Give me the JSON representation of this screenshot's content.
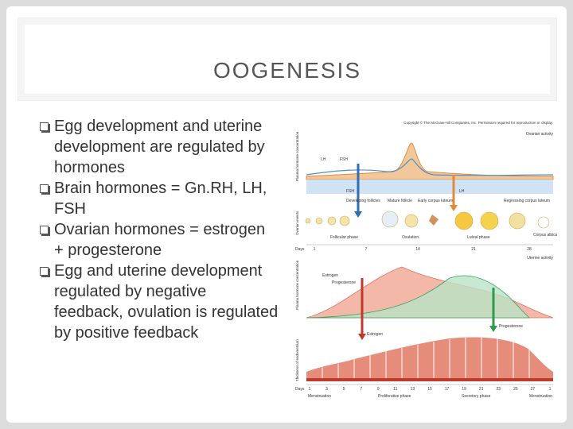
{
  "title": "OOGENESIS",
  "bullets": [
    "Egg development and uterine development are regulated by hormones",
    "Brain hormones = Gn.RH, LH, FSH",
    "Ovarian hormones = estrogen + progesterone",
    "Egg and uterine development regulated by negative feedback, ovulation is regulated by positive feedback"
  ],
  "figure": {
    "copyright": "Copyright © The McGraw-Hill Companies, Inc. Permission required for reproduction or display.",
    "top": {
      "panel_label": "Ovarian activity",
      "axis_label": "Plasma hormone concentration",
      "hormones": [
        "LH",
        "FSH"
      ],
      "arrow_labels": [
        "FSH",
        "LH"
      ],
      "events_label": "Ovarian events",
      "stages": [
        "Developing follicles",
        "Mature follicle",
        "Early corpus luteum",
        "Regressing corpus luteum",
        "Corpus albicans"
      ],
      "phases": [
        "Follicular phase",
        "Ovulation",
        "Luteal phase"
      ],
      "days_label": "Days",
      "days": [
        "1",
        "7",
        "14",
        "21",
        "28"
      ]
    },
    "bottom": {
      "panel_label": "Uterine activity",
      "axis_label": "Plasma hormone concentration",
      "hormones": [
        "Estrogen",
        "Progesterone"
      ],
      "arrow_labels": [
        "Estrogen",
        "Progesterone"
      ],
      "endometrium_label": "Thickness of endometrium",
      "days_label": "Days",
      "days": [
        "1",
        "3",
        "5",
        "7",
        "9",
        "11",
        "13",
        "15",
        "17",
        "19",
        "21",
        "23",
        "25",
        "27",
        "1"
      ],
      "phases": [
        "Menstruation",
        "Proliferative phase",
        "Secretory phase",
        "Menstruation"
      ]
    }
  }
}
